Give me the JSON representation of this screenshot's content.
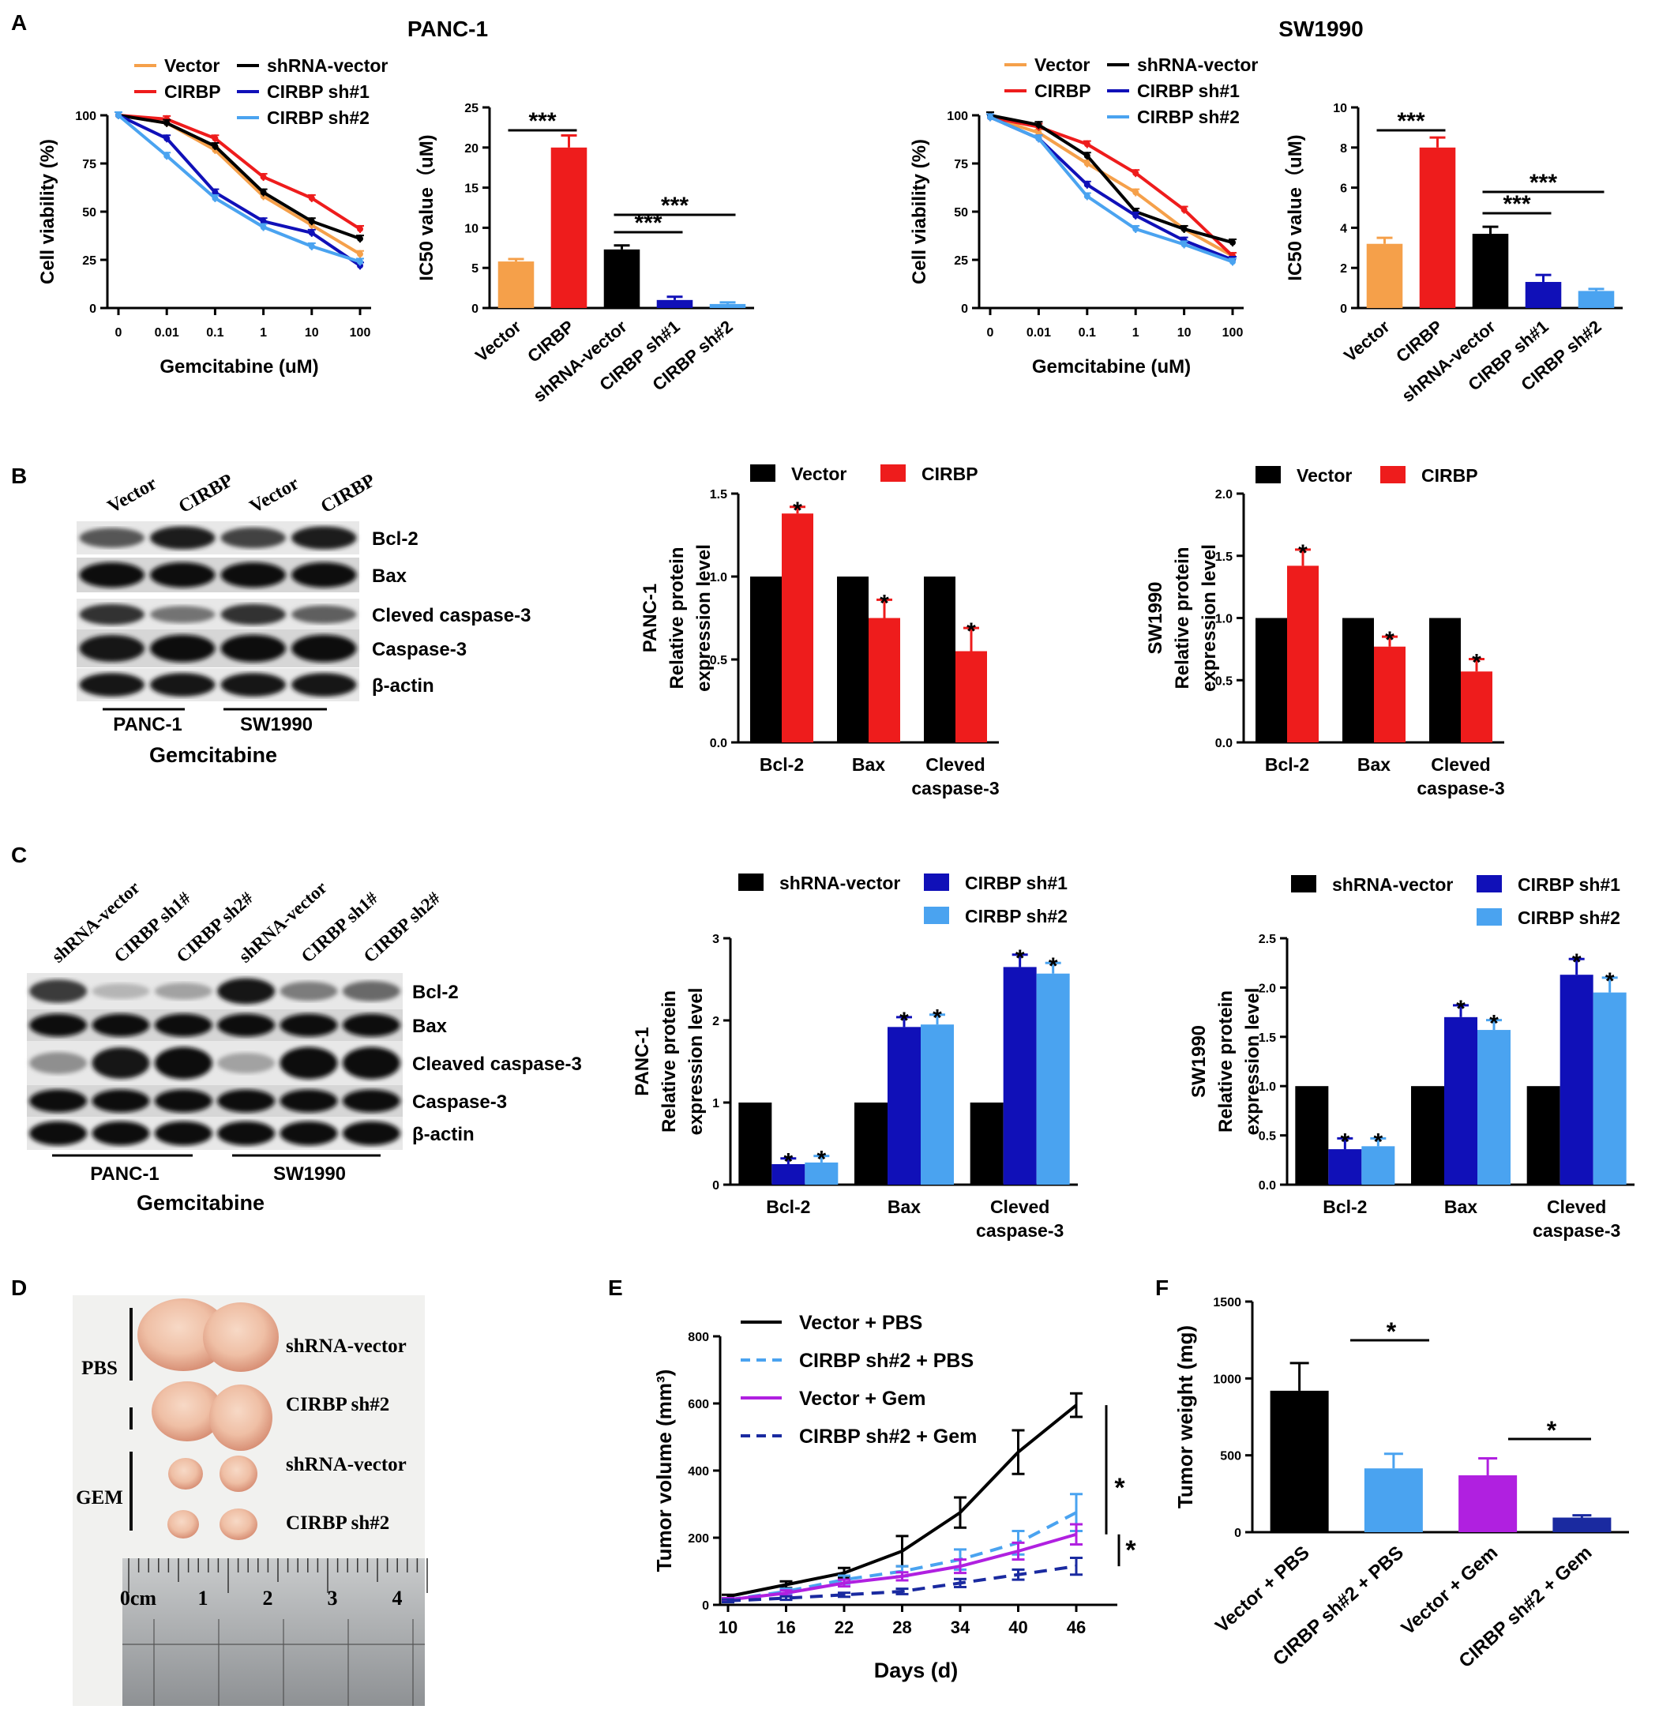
{
  "panel_letters": [
    "A",
    "B",
    "C",
    "D",
    "E",
    "F"
  ],
  "colors": {
    "vector": "#f5a04a",
    "cirbp": "#ee1c1c",
    "shvec": "#000000",
    "sh1": "#1010b8",
    "sh2": "#4aa3f0",
    "black": "#000000",
    "red": "#ee1c1c",
    "purple": "#b020e0",
    "navy": "#1a2aa0",
    "lightblue": "#4aa3f0"
  },
  "chart_data": [
    {
      "id": "A1",
      "type": "line",
      "title": "PANC-1",
      "xlabel": "Gemcitabine (uM)",
      "ylabel": "Cell viability (%)",
      "x": [
        "0",
        "0.01",
        "0.1",
        "1",
        "10",
        "100"
      ],
      "ylim": [
        0,
        100
      ],
      "yticks": [
        0,
        25,
        50,
        75,
        100
      ],
      "series": [
        {
          "name": "Vector",
          "color": "#f5a04a",
          "values": [
            100,
            96,
            82,
            58,
            43,
            28
          ]
        },
        {
          "name": "CIRBP",
          "color": "#ee1c1c",
          "values": [
            100,
            98,
            88,
            68,
            57,
            41
          ]
        },
        {
          "name": "shRNA-vector",
          "color": "#000000",
          "values": [
            100,
            96,
            84,
            60,
            45,
            36
          ]
        },
        {
          "name": "CIRBP sh#1",
          "color": "#1010b8",
          "values": [
            100,
            88,
            60,
            45,
            39,
            22
          ]
        },
        {
          "name": "CIRBP sh#2",
          "color": "#4aa3f0",
          "values": [
            100,
            79,
            57,
            42,
            32,
            24
          ]
        }
      ]
    },
    {
      "id": "A2",
      "type": "bar",
      "ylabel": "IC50 value（uM)",
      "categories": [
        "Vector",
        "CIRBP",
        "shRNA-vector",
        "CIRBP sh#1",
        "CIRBP sh#2"
      ],
      "values": [
        5.8,
        20.0,
        7.3,
        1.0,
        0.5
      ],
      "errors": [
        0.3,
        1.5,
        0.5,
        0.4,
        0.2
      ],
      "ylim": [
        0,
        25
      ],
      "yticks": [
        0,
        5,
        10,
        15,
        20,
        25
      ],
      "colors": [
        "#f5a04a",
        "#ee1c1c",
        "#000000",
        "#1010b8",
        "#4aa3f0"
      ],
      "annotations": [
        "***",
        "***",
        "***"
      ]
    },
    {
      "id": "A3",
      "type": "line",
      "title": "SW1990",
      "xlabel": "Gemcitabine (uM)",
      "ylabel": "Cell viability (%)",
      "x": [
        "0",
        "0.01",
        "0.1",
        "1",
        "10",
        "100"
      ],
      "ylim": [
        0,
        100
      ],
      "yticks": [
        0,
        25,
        50,
        75,
        100
      ],
      "series": [
        {
          "name": "Vector",
          "color": "#f5a04a",
          "values": [
            99,
            91,
            75,
            60,
            41,
            27
          ]
        },
        {
          "name": "CIRBP",
          "color": "#ee1c1c",
          "values": [
            99,
            94,
            85,
            70,
            51,
            27
          ]
        },
        {
          "name": "shRNA-vector",
          "color": "#000000",
          "values": [
            100,
            95,
            79,
            50,
            41,
            34
          ]
        },
        {
          "name": "CIRBP sh#1",
          "color": "#1010b8",
          "values": [
            99,
            88,
            64,
            48,
            35,
            25
          ]
        },
        {
          "name": "CIRBP sh#2",
          "color": "#4aa3f0",
          "values": [
            99,
            88,
            58,
            41,
            33,
            24
          ]
        }
      ]
    },
    {
      "id": "A4",
      "type": "bar",
      "ylabel": "IC50 value（uM)",
      "categories": [
        "Vector",
        "CIRBP",
        "shRNA-vector",
        "CIRBP sh#1",
        "CIRBP sh#2"
      ],
      "values": [
        3.2,
        8.0,
        3.7,
        1.3,
        0.85
      ],
      "errors": [
        0.3,
        0.5,
        0.35,
        0.35,
        0.1
      ],
      "ylim": [
        0,
        10
      ],
      "yticks": [
        0,
        2,
        4,
        6,
        8,
        10
      ],
      "colors": [
        "#f5a04a",
        "#ee1c1c",
        "#000000",
        "#1010b8",
        "#4aa3f0"
      ],
      "annotations": [
        "***",
        "***",
        "***"
      ]
    },
    {
      "id": "B1",
      "type": "bar",
      "ylabel": [
        "PANC-1",
        "Relative protein",
        "expression level"
      ],
      "categories": [
        "Bcl-2",
        "Bax",
        "Cleved|caspase-3"
      ],
      "series": [
        {
          "name": "Vector",
          "color": "#000000",
          "values": [
            1,
            1,
            1
          ],
          "errors": [
            0,
            0,
            0
          ]
        },
        {
          "name": "CIRBP",
          "color": "#ee1c1c",
          "values": [
            1.38,
            0.75,
            0.55
          ],
          "errors": [
            0.04,
            0.11,
            0.14
          ]
        }
      ],
      "ylim": [
        0,
        1.5
      ],
      "yticks": [
        "0.0",
        "0.5",
        "1.0",
        "1.5"
      ],
      "annotations": [
        "*",
        "*",
        "*"
      ]
    },
    {
      "id": "B2",
      "type": "bar",
      "ylabel": [
        "SW1990",
        "Relative protein",
        "expression level"
      ],
      "categories": [
        "Bcl-2",
        "Bax",
        "Cleved|caspase-3"
      ],
      "series": [
        {
          "name": "Vector",
          "color": "#000000",
          "values": [
            1,
            1,
            1
          ],
          "errors": [
            0,
            0,
            0
          ]
        },
        {
          "name": "CIRBP",
          "color": "#ee1c1c",
          "values": [
            1.42,
            0.77,
            0.57
          ],
          "errors": [
            0.13,
            0.08,
            0.1
          ]
        }
      ],
      "ylim": [
        0,
        2.0
      ],
      "yticks": [
        "0.0",
        "0.5",
        "1.0",
        "1.5",
        "2.0"
      ],
      "annotations": [
        "*",
        "*",
        "*"
      ]
    },
    {
      "id": "C1",
      "type": "bar",
      "ylabel": [
        "PANC-1",
        "Relative protein",
        "expression level"
      ],
      "categories": [
        "Bcl-2",
        "Bax",
        "Cleved|caspase-3"
      ],
      "series": [
        {
          "name": "shRNA-vector",
          "color": "#000000",
          "values": [
            1,
            1,
            1
          ],
          "errors": [
            0,
            0,
            0
          ]
        },
        {
          "name": "CIRBP sh#1",
          "color": "#1010b8",
          "values": [
            0.25,
            1.92,
            2.65
          ],
          "errors": [
            0.07,
            0.12,
            0.15
          ]
        },
        {
          "name": "CIRBP sh#2",
          "color": "#4aa3f0",
          "values": [
            0.27,
            1.95,
            2.57
          ],
          "errors": [
            0.08,
            0.12,
            0.13
          ]
        }
      ],
      "ylim": [
        0,
        3
      ],
      "yticks": [
        "0",
        "1",
        "2",
        "3"
      ],
      "annotations": [
        "*",
        "*",
        "*",
        "*",
        "*",
        "*"
      ]
    },
    {
      "id": "C2",
      "type": "bar",
      "ylabel": [
        "SW1990",
        "Relative protein",
        "expression level"
      ],
      "categories": [
        "Bcl-2",
        "Bax",
        "Cleved|caspase-3"
      ],
      "series": [
        {
          "name": "shRNA-vector",
          "color": "#000000",
          "values": [
            1,
            1,
            1
          ],
          "errors": [
            0,
            0,
            0
          ]
        },
        {
          "name": "CIRBP sh#1",
          "color": "#1010b8",
          "values": [
            0.36,
            1.7,
            2.13
          ],
          "errors": [
            0.11,
            0.12,
            0.16
          ]
        },
        {
          "name": "CIRBP sh#2",
          "color": "#4aa3f0",
          "values": [
            0.39,
            1.57,
            1.95
          ],
          "errors": [
            0.08,
            0.1,
            0.15
          ]
        }
      ],
      "ylim": [
        0,
        2.5
      ],
      "yticks": [
        "0.0",
        "0.5",
        "1.0",
        "1.5",
        "2.0",
        "2.5"
      ],
      "annotations": [
        "*",
        "*",
        "*",
        "*",
        "*",
        "*"
      ]
    },
    {
      "id": "E",
      "type": "line",
      "xlabel": "Days (d)",
      "ylabel": "Tumor volume (mm³)",
      "x": [
        10,
        16,
        22,
        28,
        34,
        40,
        46
      ],
      "ylim": [
        0,
        800
      ],
      "yticks": [
        0,
        200,
        400,
        600,
        800
      ],
      "series": [
        {
          "name": "Vector + PBS",
          "color": "#000000",
          "dash": false,
          "values": [
            25,
            60,
            95,
            160,
            275,
            455,
            595
          ],
          "errors": [
            5,
            10,
            15,
            45,
            45,
            65,
            35
          ]
        },
        {
          "name": "CIRBP sh#2 + PBS",
          "color": "#4aa3f0",
          "dash": true,
          "values": [
            15,
            40,
            75,
            100,
            135,
            185,
            275
          ],
          "errors": [
            5,
            8,
            12,
            15,
            30,
            35,
            55
          ]
        },
        {
          "name": "Vector + Gem",
          "color": "#b020e0",
          "dash": false,
          "values": [
            15,
            35,
            65,
            85,
            115,
            160,
            210
          ],
          "errors": [
            5,
            8,
            10,
            12,
            20,
            25,
            30
          ]
        },
        {
          "name": "CIRBP sh#2 + Gem",
          "color": "#1a2aa0",
          "dash": true,
          "values": [
            12,
            20,
            30,
            40,
            65,
            90,
            115
          ],
          "errors": [
            4,
            5,
            6,
            8,
            12,
            15,
            25
          ]
        }
      ],
      "annotations": [
        "*",
        "*"
      ]
    },
    {
      "id": "F",
      "type": "bar",
      "ylabel": "Tumor weight (mg)",
      "categories": [
        "Vector + PBS",
        "CIRBP sh#2 + PBS",
        "Vector + Gem",
        "CIRBP sh#2 + Gem"
      ],
      "values": [
        920,
        415,
        370,
        95
      ],
      "errors": [
        180,
        95,
        110,
        15
      ],
      "ylim": [
        0,
        1500
      ],
      "yticks": [
        0,
        500,
        1000,
        1500
      ],
      "colors": [
        "#000000",
        "#4aa3f0",
        "#b020e0",
        "#1a2aa0"
      ],
      "annotations": [
        "*",
        "*"
      ]
    }
  ],
  "blot_B": {
    "lanes": [
      "Vector",
      "CIRBP",
      "Vector",
      "CIRBP"
    ],
    "rows": [
      "Bcl-2",
      "Bax",
      "Cleved caspase-3",
      "Caspase-3",
      "β-actin"
    ],
    "groups": [
      "PANC-1",
      "SW1990"
    ],
    "footer": "Gemcitabine"
  },
  "blot_C": {
    "lanes": [
      "shRNA-vector",
      "CIRBP sh1#",
      "CIRBP sh2#",
      "shRNA-vector",
      "CIRBP sh1#",
      "CIRBP sh2#"
    ],
    "rows": [
      "Bcl-2",
      "Bax",
      "Cleaved caspase-3",
      "Caspase-3",
      "β-actin"
    ],
    "groups": [
      "PANC-1",
      "SW1990"
    ],
    "footer": "Gemcitabine"
  },
  "photo_D": {
    "groups": [
      "PBS",
      "GEM"
    ],
    "labels": [
      "shRNA-vector",
      "CIRBP sh#2",
      "shRNA-vector",
      "CIRBP sh#2"
    ],
    "ruler": [
      "0cm",
      "1",
      "2",
      "3",
      "4"
    ]
  }
}
